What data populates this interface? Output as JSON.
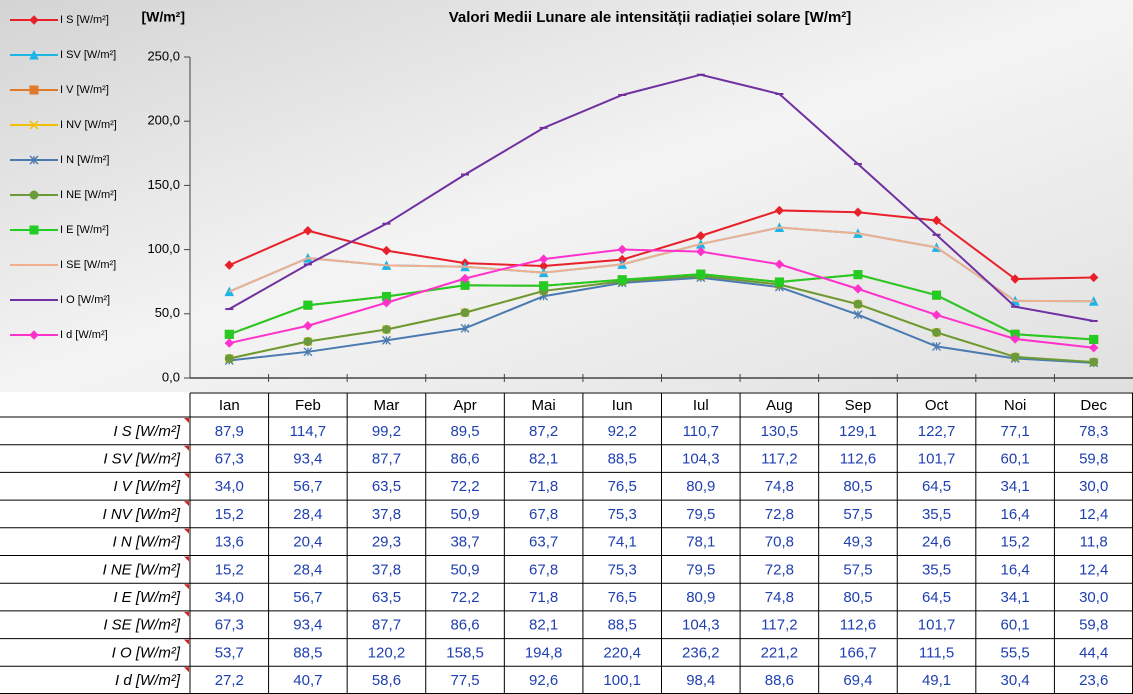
{
  "chart_data": {
    "type": "line",
    "title": "Valori Medii Lunare ale intensității radiației solare [W/m²]",
    "y_label": "[W/m²]",
    "categories": [
      "Ian",
      "Feb",
      "Mar",
      "Apr",
      "Mai",
      "Iun",
      "Iul",
      "Aug",
      "Sep",
      "Oct",
      "Noi",
      "Dec"
    ],
    "ylim": [
      0,
      250
    ],
    "yticks": [
      {
        "value": 0,
        "label": "0,0"
      },
      {
        "value": 50,
        "label": "50,0"
      },
      {
        "value": 100,
        "label": "100,0"
      },
      {
        "value": 150,
        "label": "150,0"
      },
      {
        "value": 200,
        "label": "200,0"
      },
      {
        "value": 250,
        "label": "250,0"
      }
    ],
    "legend": "left",
    "series": [
      {
        "name": "I S [W/m²]",
        "color": "#e8202a",
        "marker": "diamond",
        "values": [
          87.9,
          114.7,
          99.2,
          89.5,
          87.2,
          92.2,
          110.7,
          130.5,
          129.1,
          122.7,
          77.1,
          78.3
        ],
        "value_labels": [
          "87,9",
          "114,7",
          "99,2",
          "89,5",
          "87,2",
          "92,2",
          "110,7",
          "130,5",
          "129,1",
          "122,7",
          "77,1",
          "78,3"
        ]
      },
      {
        "name": "I SV [W/m²]",
        "color": "#1fb4e6",
        "marker": "triangle",
        "values": [
          67.3,
          93.4,
          87.7,
          86.6,
          82.1,
          88.5,
          104.3,
          117.2,
          112.6,
          101.7,
          60.1,
          59.8
        ],
        "value_labels": [
          "67,3",
          "93,4",
          "87,7",
          "86,6",
          "82,1",
          "88,5",
          "104,3",
          "117,2",
          "112,6",
          "101,7",
          "60,1",
          "59,8"
        ]
      },
      {
        "name": "I V [W/m²]",
        "color": "#e07a2a",
        "marker": "square",
        "values": [
          34.0,
          56.7,
          63.5,
          72.2,
          71.8,
          76.5,
          80.9,
          74.8,
          80.5,
          64.5,
          34.1,
          30.0
        ],
        "value_labels": [
          "34,0",
          "56,7",
          "63,5",
          "72,2",
          "71,8",
          "76,5",
          "80,9",
          "74,8",
          "80,5",
          "64,5",
          "34,1",
          "30,0"
        ]
      },
      {
        "name": "I NV [W/m²]",
        "color": "#f0c000",
        "marker": "x",
        "values": [
          15.2,
          28.4,
          37.8,
          50.9,
          67.8,
          75.3,
          79.5,
          72.8,
          57.5,
          35.5,
          16.4,
          12.4
        ],
        "value_labels": [
          "15,2",
          "28,4",
          "37,8",
          "50,9",
          "67,8",
          "75,3",
          "79,5",
          "72,8",
          "57,5",
          "35,5",
          "16,4",
          "12,4"
        ]
      },
      {
        "name": "I N [W/m²]",
        "color": "#4a7ab0",
        "marker": "asterisk",
        "values": [
          13.6,
          20.4,
          29.3,
          38.7,
          63.7,
          74.1,
          78.1,
          70.8,
          49.3,
          24.6,
          15.2,
          11.8
        ],
        "value_labels": [
          "13,6",
          "20,4",
          "29,3",
          "38,7",
          "63,7",
          "74,1",
          "78,1",
          "70,8",
          "49,3",
          "24,6",
          "15,2",
          "11,8"
        ]
      },
      {
        "name": "I NE [W/m²]",
        "color": "#6a9a3a",
        "marker": "circle",
        "values": [
          15.2,
          28.4,
          37.8,
          50.9,
          67.8,
          75.3,
          79.5,
          72.8,
          57.5,
          35.5,
          16.4,
          12.4
        ],
        "value_labels": [
          "15,2",
          "28,4",
          "37,8",
          "50,9",
          "67,8",
          "75,3",
          "79,5",
          "72,8",
          "57,5",
          "35,5",
          "16,4",
          "12,4"
        ]
      },
      {
        "name": "I E [W/m²]",
        "color": "#22cc22",
        "marker": "square",
        "values": [
          34.0,
          56.7,
          63.5,
          72.2,
          71.8,
          76.5,
          80.9,
          74.8,
          80.5,
          64.5,
          34.1,
          30.0
        ],
        "value_labels": [
          "34,0",
          "56,7",
          "63,5",
          "72,2",
          "71,8",
          "76,5",
          "80,9",
          "74,8",
          "80,5",
          "64,5",
          "34,1",
          "30,0"
        ]
      },
      {
        "name": "I SE [W/m²]",
        "color": "#f0b090",
        "marker": "none",
        "values": [
          67.3,
          93.4,
          87.7,
          86.6,
          82.1,
          88.5,
          104.3,
          117.2,
          112.6,
          101.7,
          60.1,
          59.8
        ],
        "value_labels": [
          "67,3",
          "93,4",
          "87,7",
          "86,6",
          "82,1",
          "88,5",
          "104,3",
          "117,2",
          "112,6",
          "101,7",
          "60,1",
          "59,8"
        ]
      },
      {
        "name": "I O [W/m²]",
        "color": "#7030a0",
        "marker": "dash",
        "values": [
          53.7,
          88.5,
          120.2,
          158.5,
          194.8,
          220.4,
          236.2,
          221.2,
          166.7,
          111.5,
          55.5,
          44.4
        ],
        "value_labels": [
          "53,7",
          "88,5",
          "120,2",
          "158,5",
          "194,8",
          "220,4",
          "236,2",
          "221,2",
          "166,7",
          "111,5",
          "55,5",
          "44,4"
        ]
      },
      {
        "name": "I d [W/m²]",
        "color": "#ff33cc",
        "marker": "diamond",
        "values": [
          27.2,
          40.7,
          58.6,
          77.5,
          92.6,
          100.1,
          98.4,
          88.6,
          69.4,
          49.1,
          30.4,
          23.6
        ],
        "value_labels": [
          "27,2",
          "40,7",
          "58,6",
          "77,5",
          "92,6",
          "100,1",
          "98,4",
          "88,6",
          "69,4",
          "49,1",
          "30,4",
          "23,6"
        ]
      }
    ]
  }
}
